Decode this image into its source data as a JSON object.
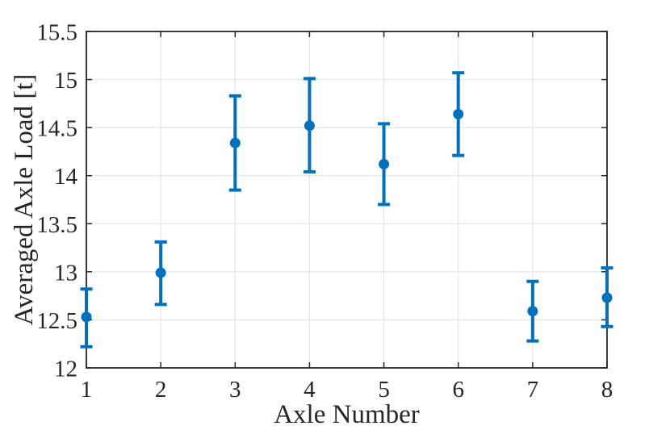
{
  "chart_data": {
    "type": "scatter",
    "subtype": "errorbar",
    "title": "",
    "xlabel": "Axle Number",
    "ylabel": "Averaged Axle Load [t]",
    "x": [
      1,
      2,
      3,
      4,
      5,
      6,
      7,
      8
    ],
    "y": [
      12.53,
      12.99,
      14.34,
      14.52,
      14.12,
      14.64,
      12.59,
      12.73
    ],
    "y_upper": [
      12.82,
      13.31,
      14.83,
      15.01,
      14.54,
      15.07,
      12.9,
      13.04
    ],
    "y_lower": [
      12.22,
      12.66,
      13.85,
      14.04,
      13.7,
      14.21,
      12.28,
      12.43
    ],
    "xlim": [
      1,
      8
    ],
    "ylim": [
      12,
      15.5
    ],
    "xticks": {
      "values": [
        1,
        2,
        3,
        4,
        5,
        6,
        7,
        8
      ],
      "labels": [
        "1",
        "2",
        "3",
        "4",
        "5",
        "6",
        "7",
        "8"
      ]
    },
    "yticks": {
      "values": [
        12,
        12.5,
        13,
        13.5,
        14,
        14.5,
        15,
        15.5
      ],
      "labels": [
        "12",
        "12.5",
        "13",
        "13.5",
        "14",
        "14.5",
        "15",
        "15.5"
      ]
    },
    "grid": true,
    "legend": "none",
    "colors": {
      "series": "#0072BD",
      "axis": "#262626",
      "grid": "#E6E6E6",
      "background": "#FFFFFF"
    }
  }
}
